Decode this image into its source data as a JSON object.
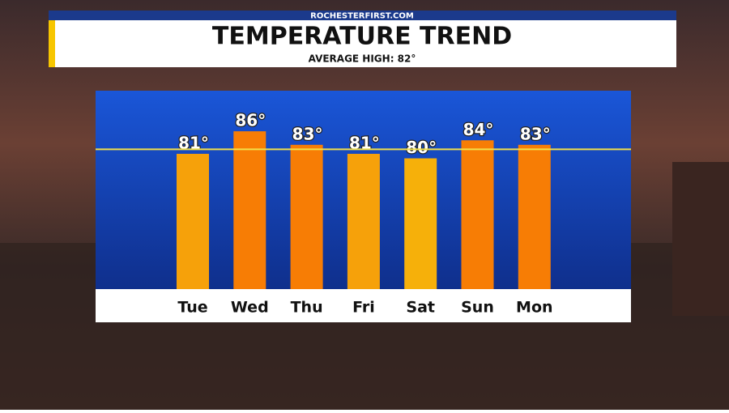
{
  "chart_data": {
    "type": "bar",
    "source": "ROCHESTERFIRST.COM",
    "title": "TEMPERATURE TREND",
    "subtitle": "AVERAGE HIGH: 82°",
    "categories": [
      "Tue",
      "Wed",
      "Thu",
      "Fri",
      "Sat",
      "Sun",
      "Mon"
    ],
    "values": [
      81,
      86,
      83,
      81,
      80,
      84,
      83
    ],
    "value_labels": [
      "81°",
      "86°",
      "83°",
      "81°",
      "80°",
      "84°",
      "83°"
    ],
    "colors": [
      "#f6a10a",
      "#f77d05",
      "#f77d05",
      "#f6a10a",
      "#f6b00a",
      "#f77d05",
      "#f77d05"
    ],
    "average_line": 82,
    "average_line_color": "#f2e04a",
    "ylim": [
      51,
      95
    ]
  }
}
